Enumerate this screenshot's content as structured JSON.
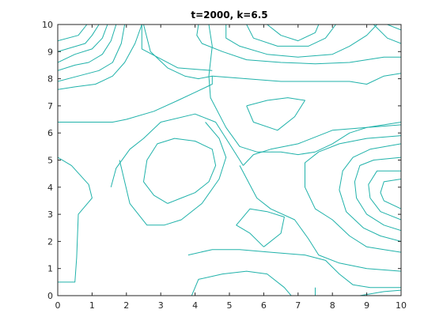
{
  "chart_data": {
    "type": "contour",
    "title": "t=2000, k=6.5",
    "xlabel": "",
    "ylabel": "",
    "xlim": [
      0,
      10
    ],
    "ylim": [
      0,
      10
    ],
    "xticks": [
      0,
      1,
      2,
      3,
      4,
      5,
      6,
      7,
      8,
      9,
      10
    ],
    "yticks": [
      0,
      1,
      2,
      3,
      4,
      5,
      6,
      7,
      8,
      9,
      10
    ],
    "grid": false,
    "line_color": "#20b2aa",
    "contours": [
      [
        [
          0.85,
          10
        ],
        [
          0.6,
          9.6
        ],
        [
          0,
          9.4
        ]
      ],
      [
        [
          1.2,
          10
        ],
        [
          1,
          9.6
        ],
        [
          0.8,
          9.3
        ],
        [
          0,
          9
        ]
      ],
      [
        [
          1.45,
          10
        ],
        [
          1.3,
          9.5
        ],
        [
          1,
          9.1
        ],
        [
          0.5,
          8.9
        ],
        [
          0,
          8.6
        ]
      ],
      [
        [
          1.7,
          10
        ],
        [
          1.55,
          9.4
        ],
        [
          1.3,
          8.9
        ],
        [
          0.9,
          8.6
        ],
        [
          0.5,
          8.5
        ],
        [
          0,
          8.3
        ]
      ],
      [
        [
          1.95,
          10
        ],
        [
          1.85,
          9.3
        ],
        [
          1.6,
          8.6
        ],
        [
          1.2,
          8.3
        ],
        [
          0.6,
          8.1
        ],
        [
          0,
          7.9
        ]
      ],
      [
        [
          2.45,
          10
        ],
        [
          2.25,
          9.3
        ],
        [
          1.95,
          8.6
        ],
        [
          1.6,
          8.1
        ],
        [
          1.1,
          7.8
        ],
        [
          0.5,
          7.7
        ],
        [
          0,
          7.6
        ]
      ],
      [
        [
          2.45,
          10
        ],
        [
          2.45,
          9.1
        ],
        [
          3.5,
          8.4
        ],
        [
          4.5,
          8.3
        ]
      ],
      [
        [
          0,
          6.4
        ],
        [
          1.6,
          6.4
        ],
        [
          2,
          6.5
        ],
        [
          2.8,
          6.8
        ],
        [
          3.5,
          7.2
        ],
        [
          4,
          7.5
        ],
        [
          4.5,
          7.8
        ],
        [
          4.5,
          8.1
        ],
        [
          4.1,
          8.0
        ],
        [
          3.7,
          8.1
        ],
        [
          3.2,
          8.4
        ],
        [
          2.7,
          9
        ],
        [
          2.5,
          10
        ]
      ],
      [
        [
          4.4,
          10
        ],
        [
          4.5,
          9.2
        ],
        [
          4.4,
          8.1
        ],
        [
          4.45,
          7.3
        ],
        [
          4.9,
          6.2
        ],
        [
          5.3,
          5.5
        ],
        [
          5.8,
          5.3
        ],
        [
          6.5,
          5.3
        ],
        [
          7,
          5.2
        ],
        [
          7.5,
          5.3
        ],
        [
          8,
          5.6
        ],
        [
          8.5,
          6.0
        ],
        [
          9,
          6.2
        ],
        [
          10,
          6.4
        ]
      ],
      [
        [
          4.1,
          10
        ],
        [
          4.05,
          9.6
        ],
        [
          4.2,
          9.3
        ],
        [
          4.8,
          9.0
        ],
        [
          5.5,
          8.7
        ],
        [
          6.5,
          8.6
        ],
        [
          7.5,
          8.55
        ],
        [
          8.5,
          8.6
        ],
        [
          9.5,
          8.8
        ],
        [
          10,
          8.8
        ]
      ],
      [
        [
          4.9,
          10
        ],
        [
          4.9,
          9.5
        ],
        [
          5.3,
          9.2
        ],
        [
          6.1,
          8.9
        ],
        [
          7,
          8.8
        ],
        [
          8,
          8.9
        ],
        [
          8.5,
          9.2
        ],
        [
          9,
          9.6
        ],
        [
          9.3,
          10
        ]
      ],
      [
        [
          5.5,
          10
        ],
        [
          5.7,
          9.5
        ],
        [
          6.4,
          9.2
        ],
        [
          7.3,
          9.2
        ],
        [
          7.8,
          9.5
        ],
        [
          8.1,
          10
        ]
      ],
      [
        [
          6.1,
          10
        ],
        [
          6.5,
          9.6
        ],
        [
          7,
          9.4
        ],
        [
          7.5,
          9.7
        ],
        [
          7.6,
          10
        ]
      ],
      [
        [
          9.2,
          10
        ],
        [
          9.6,
          9.5
        ],
        [
          10,
          9.3
        ]
      ],
      [
        [
          9.6,
          10
        ],
        [
          10,
          9.8
        ]
      ],
      [
        [
          4.5,
          8.1
        ],
        [
          5.5,
          8.0
        ],
        [
          6.5,
          7.9
        ],
        [
          7.5,
          7.9
        ],
        [
          8.5,
          7.9
        ],
        [
          9,
          7.8
        ],
        [
          9.5,
          8.1
        ],
        [
          10,
          8.2
        ]
      ],
      [
        [
          5.5,
          7.0
        ],
        [
          6.1,
          7.2
        ],
        [
          6.7,
          7.3
        ],
        [
          7.2,
          7.2
        ],
        [
          6.9,
          6.6
        ],
        [
          6.4,
          6.1
        ],
        [
          5.7,
          6.4
        ],
        [
          5.5,
          7.0
        ]
      ],
      [
        [
          5.4,
          4.8
        ],
        [
          5.7,
          5.2
        ],
        [
          6.2,
          5.4
        ],
        [
          7,
          5.6
        ],
        [
          8,
          6.1
        ],
        [
          9,
          6.2
        ],
        [
          10,
          6.3
        ]
      ],
      [
        [
          0,
          5.1
        ],
        [
          0.4,
          4.8
        ],
        [
          0.9,
          4.1
        ],
        [
          1,
          3.6
        ],
        [
          0.6,
          3.0
        ],
        [
          0.55,
          1.4
        ],
        [
          0.5,
          0.5
        ],
        [
          0,
          0.5
        ]
      ],
      [
        [
          1.55,
          4.0
        ],
        [
          1.7,
          4.7
        ],
        [
          2.1,
          5.4
        ],
        [
          2.5,
          5.8
        ],
        [
          3,
          6.4
        ],
        [
          4,
          6.7
        ],
        [
          4.6,
          6.4
        ],
        [
          5,
          5.6
        ],
        [
          5.4,
          4.8
        ]
      ],
      [
        [
          1.8,
          5.0
        ],
        [
          1.95,
          4.2
        ],
        [
          2.1,
          3.4
        ],
        [
          2.6,
          2.6
        ],
        [
          3.1,
          2.6
        ],
        [
          3.6,
          2.8
        ],
        [
          4.2,
          3.4
        ],
        [
          4.7,
          4.3
        ],
        [
          4.9,
          5.1
        ],
        [
          4.7,
          5.8
        ],
        [
          4.3,
          6.4
        ]
      ],
      [
        [
          3.2,
          3.4
        ],
        [
          2.8,
          3.7
        ],
        [
          2.5,
          4.2
        ],
        [
          2.6,
          5.0
        ],
        [
          2.9,
          5.6
        ],
        [
          3.4,
          5.8
        ],
        [
          4,
          5.7
        ],
        [
          4.5,
          5.4
        ],
        [
          4.6,
          4.8
        ],
        [
          4.4,
          4.2
        ],
        [
          4,
          3.8
        ],
        [
          3.6,
          3.6
        ],
        [
          3.2,
          3.4
        ]
      ],
      [
        [
          6,
          1.8
        ],
        [
          5.6,
          2.3
        ],
        [
          5.2,
          2.6
        ],
        [
          5.6,
          3.2
        ],
        [
          6.1,
          3.1
        ],
        [
          6.6,
          2.9
        ],
        [
          6.5,
          2.3
        ],
        [
          6,
          1.8
        ]
      ],
      [
        [
          3.8,
          1.5
        ],
        [
          4.5,
          1.7
        ],
        [
          5.3,
          1.7
        ],
        [
          6.2,
          1.6
        ],
        [
          7.2,
          1.5
        ],
        [
          7.8,
          1.3
        ],
        [
          8.2,
          0.8
        ],
        [
          8.6,
          0.4
        ],
        [
          9.1,
          0.3
        ],
        [
          10,
          0.3
        ]
      ],
      [
        [
          5.3,
          4.8
        ],
        [
          5.8,
          3.6
        ],
        [
          6.2,
          3.2
        ],
        [
          6.9,
          2.8
        ],
        [
          7.3,
          2.1
        ],
        [
          7.6,
          1.5
        ],
        [
          8.2,
          1.2
        ],
        [
          9,
          1.0
        ],
        [
          10,
          0.9
        ]
      ],
      [
        [
          3.9,
          0
        ],
        [
          4.1,
          0.6
        ],
        [
          4.8,
          0.8
        ],
        [
          5.5,
          0.9
        ],
        [
          6.1,
          0.8
        ],
        [
          6.6,
          0.3
        ],
        [
          6.8,
          0
        ]
      ],
      [
        [
          7.5,
          0
        ],
        [
          7.5,
          0.3
        ]
      ],
      [
        [
          8.8,
          0
        ],
        [
          9.5,
          0.15
        ],
        [
          10,
          0.2
        ]
      ],
      [
        [
          10,
          1.6
        ],
        [
          9.5,
          1.7
        ],
        [
          9,
          1.8
        ],
        [
          8.5,
          2.2
        ],
        [
          8.0,
          2.8
        ],
        [
          7.5,
          3.2
        ],
        [
          7.2,
          4
        ],
        [
          7.2,
          4.9
        ],
        [
          7.6,
          5.3
        ],
        [
          8.2,
          5.6
        ],
        [
          9,
          5.8
        ],
        [
          10,
          5.9
        ]
      ],
      [
        [
          10,
          2.0
        ],
        [
          9.4,
          2.2
        ],
        [
          8.9,
          2.5
        ],
        [
          8.4,
          3.1
        ],
        [
          8.2,
          3.9
        ],
        [
          8.3,
          4.6
        ],
        [
          8.6,
          5.1
        ],
        [
          9.1,
          5.4
        ],
        [
          10,
          5.6
        ]
      ],
      [
        [
          10,
          2.4
        ],
        [
          9.5,
          2.6
        ],
        [
          9.0,
          3.0
        ],
        [
          8.7,
          3.6
        ],
        [
          8.65,
          4.2
        ],
        [
          8.8,
          4.8
        ],
        [
          9.2,
          5.0
        ],
        [
          10,
          5.1
        ]
      ],
      [
        [
          10,
          2.8
        ],
        [
          9.4,
          3.1
        ],
        [
          9.1,
          3.6
        ],
        [
          9.05,
          4.1
        ],
        [
          9.3,
          4.6
        ],
        [
          10,
          4.6
        ]
      ],
      [
        [
          10,
          3.2
        ],
        [
          9.5,
          3.5
        ],
        [
          9.4,
          3.8
        ],
        [
          9.5,
          4.2
        ],
        [
          10,
          4.3
        ]
      ]
    ]
  }
}
